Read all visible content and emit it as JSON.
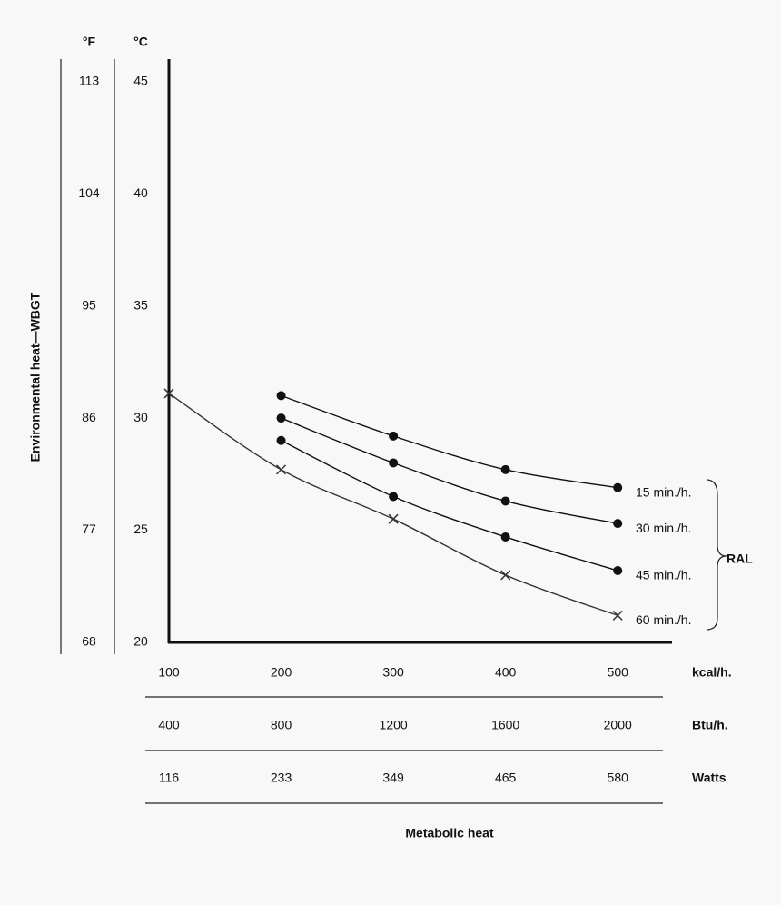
{
  "chart_data": {
    "type": "line",
    "y_title": "Environmental heat—WBGT",
    "x_title": "Metabolic heat",
    "y_unit": "°C",
    "y2_unit": "°F",
    "x_unit": "kcal/h.",
    "xlim": [
      100,
      550
    ],
    "xticks": [
      100,
      200,
      300,
      400,
      500
    ],
    "x_rows": [
      {
        "unit": "Btu/h.",
        "labels": [
          400,
          800,
          1200,
          1600,
          2000
        ]
      },
      {
        "unit": "Watts",
        "labels": [
          116,
          233,
          349,
          465,
          580
        ]
      }
    ],
    "ylim": [
      20,
      46
    ],
    "yticks": [
      20,
      25,
      30,
      35,
      40,
      45
    ],
    "y2lim": [
      68,
      114.8
    ],
    "y2ticks": [
      68,
      77,
      86,
      95,
      104,
      113
    ],
    "grid": false,
    "bracket_label": "RAL",
    "series": [
      {
        "name": "15 min./h.",
        "color": "#111111",
        "marker": "dot",
        "x": [
          200,
          300,
          400,
          500
        ],
        "values": [
          31.0,
          29.2,
          27.7,
          26.9
        ]
      },
      {
        "name": "30 min./h.",
        "color": "#111111",
        "marker": "dot",
        "x": [
          200,
          300,
          400,
          500
        ],
        "values": [
          30.0,
          28.0,
          26.3,
          25.3
        ]
      },
      {
        "name": "45 min./h.",
        "color": "#111111",
        "marker": "dot",
        "x": [
          200,
          300,
          400,
          500
        ],
        "values": [
          29.0,
          26.5,
          24.7,
          23.2
        ]
      },
      {
        "name": "60 min./h.",
        "color": "#333333",
        "marker": "x",
        "x": [
          100,
          200,
          300,
          400,
          500
        ],
        "values": [
          31.1,
          27.7,
          25.5,
          23.0,
          21.2
        ]
      }
    ]
  }
}
